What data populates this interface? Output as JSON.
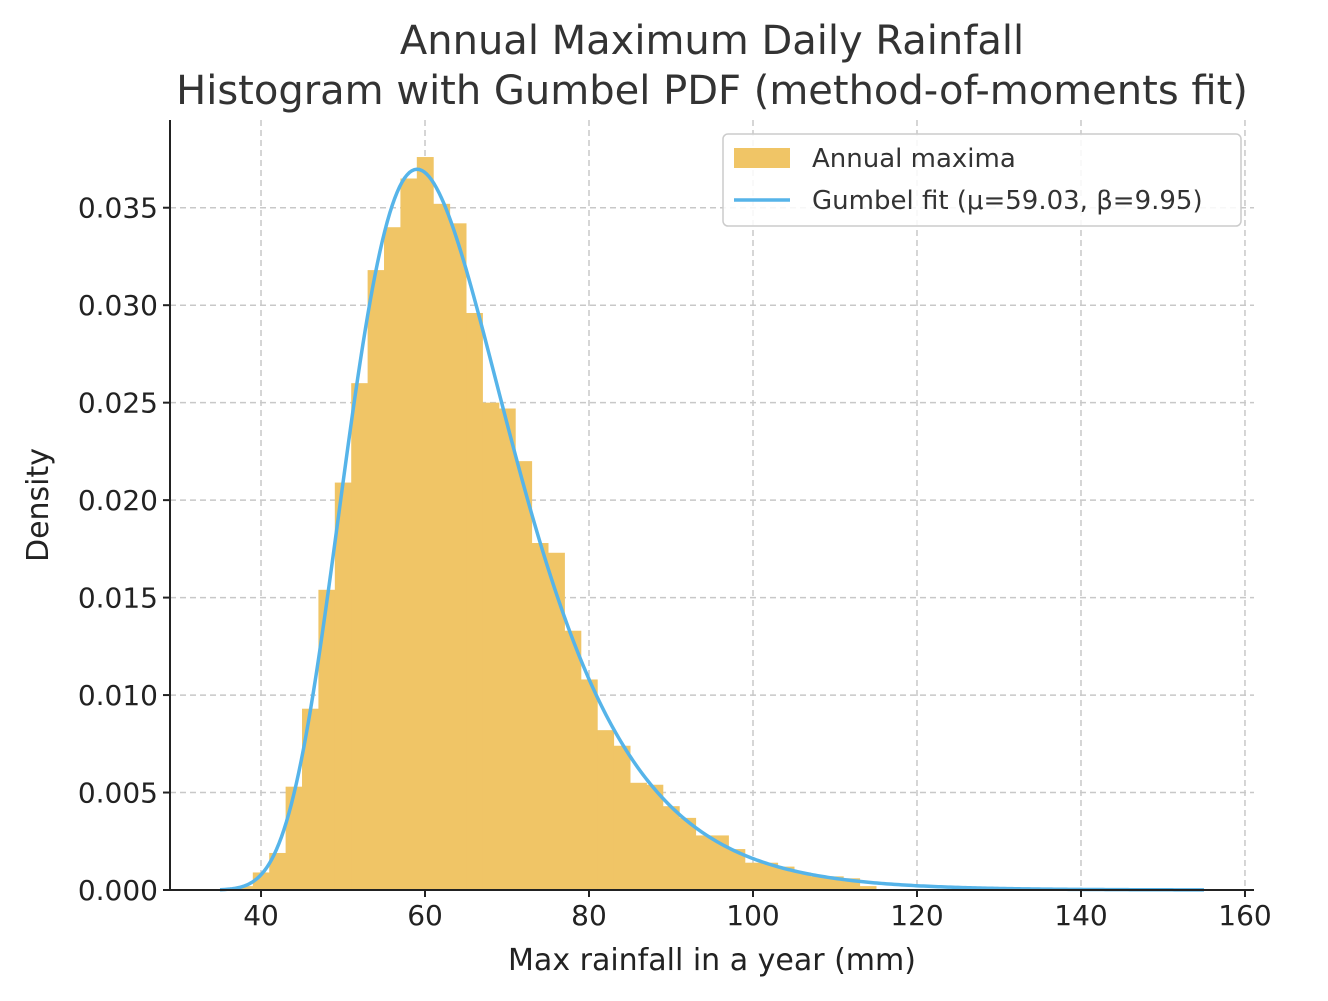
{
  "chart_data": {
    "type": "bar",
    "title_line1": "Annual Maximum Daily Rainfall",
    "title_line2": "Histogram with Gumbel PDF (method-of-moments fit)",
    "xlabel": "Max rainfall in a year (mm)",
    "ylabel": "Density",
    "xlim": [
      28.9,
      161.1
    ],
    "ylim": [
      0,
      0.0395
    ],
    "xticks": [
      40,
      60,
      80,
      100,
      120,
      140,
      160
    ],
    "xtick_labels": [
      "40",
      "60",
      "80",
      "100",
      "120",
      "140",
      "160"
    ],
    "yticks": [
      0,
      0.005,
      0.01,
      0.015,
      0.02,
      0.025,
      0.03,
      0.035
    ],
    "ytick_labels": [
      "0.000",
      "0.005",
      "0.010",
      "0.015",
      "0.020",
      "0.025",
      "0.030",
      "0.035"
    ],
    "grid": true,
    "legend_placement": "top-right",
    "histogram": {
      "name": "Annual maxima",
      "color": "#F0C566",
      "bin_edges": [
        37,
        39,
        41,
        43,
        45,
        47,
        49,
        51,
        53,
        55,
        57,
        59,
        61,
        63,
        65,
        67,
        69,
        71,
        73,
        75,
        77,
        79,
        81,
        83,
        85,
        87,
        89,
        91,
        93,
        95,
        97,
        99,
        101,
        103,
        105,
        107,
        109,
        111,
        113,
        115
      ],
      "density": [
        0.0002,
        0.0009,
        0.0019,
        0.0053,
        0.0093,
        0.0154,
        0.0209,
        0.026,
        0.0318,
        0.034,
        0.0365,
        0.0376,
        0.0352,
        0.0342,
        0.0296,
        0.025,
        0.0247,
        0.022,
        0.0178,
        0.0173,
        0.0133,
        0.0108,
        0.0082,
        0.0074,
        0.0055,
        0.0054,
        0.0043,
        0.0037,
        0.0028,
        0.0028,
        0.0021,
        0.0014,
        0.0014,
        0.0012,
        0.0009,
        0.0007,
        0.0007,
        0.0006,
        0.0002
      ]
    },
    "fit": {
      "name": "Gumbel fit (μ=59.03, β=9.95)",
      "distribution": "gumbel",
      "mu": 59.03,
      "beta": 9.95,
      "x_range": [
        35,
        155
      ],
      "color": "#56B4E9"
    }
  }
}
